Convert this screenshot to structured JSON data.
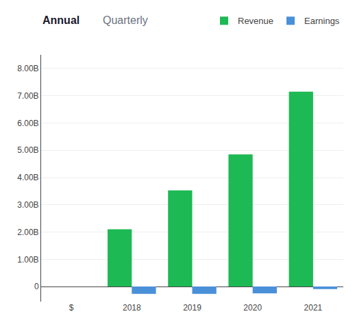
{
  "chart_data": {
    "type": "bar",
    "annotations": [
      "Annual",
      "Quarterly"
    ],
    "categories": [
      "$",
      "2018",
      "2019",
      "2020",
      "2021"
    ],
    "series": [
      {
        "name": "Revenue",
        "color": "#1DB954",
        "values": [
          null,
          2.1,
          3.53,
          4.85,
          7.15
        ]
      },
      {
        "name": "Earnings",
        "color": "#4A90D9",
        "values": [
          null,
          -0.27,
          -0.27,
          -0.25,
          -0.092
        ]
      }
    ],
    "ylim": [
      -0.55,
      8.5
    ],
    "yticks": [
      0,
      {
        "value": 1.0,
        "label": "1.00B"
      },
      {
        "value": 2.0,
        "label": "2.00B"
      },
      {
        "value": 3.0,
        "label": "3.00B"
      },
      {
        "value": 4.0,
        "label": "4.00B"
      },
      {
        "value": 5.0,
        "label": "5.00B"
      },
      {
        "value": 6.0,
        "label": "6.00B"
      },
      {
        "value": 7.0,
        "label": "7.00B"
      },
      {
        "value": 8.0,
        "label": "8.00B"
      }
    ],
    "grid": true,
    "legend": "upper right"
  }
}
